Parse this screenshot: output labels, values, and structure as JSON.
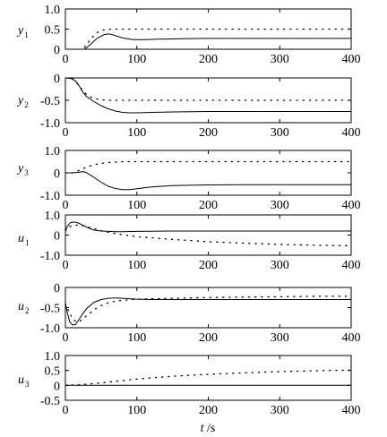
{
  "chart_data": [
    {
      "type": "line",
      "ylabel": {
        "var": "y",
        "sub": "1"
      },
      "xlim": [
        0,
        400
      ],
      "ylim": [
        0.0,
        1.0
      ],
      "xticks": [
        "0",
        "100",
        "200",
        "300",
        "400"
      ],
      "yticks": [
        "1.0",
        "0.5",
        "0"
      ],
      "series": [
        {
          "style": "solid",
          "x": [
            27,
            35,
            45,
            55,
            62,
            70,
            80,
            95,
            110,
            130,
            160,
            200,
            250,
            300,
            350,
            400
          ],
          "y": [
            0.0,
            0.12,
            0.28,
            0.37,
            0.38,
            0.34,
            0.28,
            0.24,
            0.24,
            0.25,
            0.26,
            0.27,
            0.27,
            0.27,
            0.27,
            0.27
          ]
        },
        {
          "style": "dotted",
          "x": [
            27,
            35,
            45,
            55,
            65,
            80,
            100,
            150,
            200,
            250,
            300,
            350,
            400
          ],
          "y": [
            0.05,
            0.25,
            0.42,
            0.49,
            0.5,
            0.5,
            0.5,
            0.5,
            0.5,
            0.5,
            0.5,
            0.5,
            0.5
          ]
        }
      ]
    },
    {
      "type": "line",
      "ylabel": {
        "var": "y",
        "sub": "2"
      },
      "xlim": [
        0,
        400
      ],
      "ylim": [
        -1.0,
        0.0
      ],
      "xticks": [
        "0",
        "100",
        "200",
        "300",
        "400"
      ],
      "yticks": [
        "0",
        "-0.5",
        "-1.0"
      ],
      "series": [
        {
          "style": "solid",
          "x": [
            0,
            10,
            16,
            20,
            25,
            30,
            40,
            50,
            60,
            70,
            80,
            90,
            100,
            120,
            150,
            200,
            250,
            300,
            350,
            400
          ],
          "y": [
            0.0,
            -0.02,
            -0.1,
            -0.2,
            -0.33,
            -0.42,
            -0.53,
            -0.62,
            -0.69,
            -0.74,
            -0.77,
            -0.78,
            -0.78,
            -0.77,
            -0.76,
            -0.75,
            -0.75,
            -0.75,
            -0.75,
            -0.75
          ]
        },
        {
          "style": "dotted",
          "x": [
            10,
            18,
            25,
            32,
            40,
            50,
            60,
            80,
            100,
            150,
            200,
            250,
            300,
            350,
            400
          ],
          "y": [
            -0.02,
            -0.15,
            -0.3,
            -0.4,
            -0.46,
            -0.49,
            -0.5,
            -0.5,
            -0.5,
            -0.5,
            -0.5,
            -0.5,
            -0.5,
            -0.5,
            -0.5
          ]
        }
      ]
    },
    {
      "type": "line",
      "ylabel": {
        "var": "y",
        "sub": "3"
      },
      "xlim": [
        0,
        400
      ],
      "ylim": [
        -1.0,
        1.0
      ],
      "xticks": [
        "0",
        "100",
        "200",
        "300",
        "400"
      ],
      "yticks": [
        "1.0",
        "0",
        "-1.0"
      ],
      "series": [
        {
          "style": "solid",
          "x": [
            0,
            10,
            20,
            25,
            30,
            40,
            50,
            60,
            70,
            80,
            90,
            100,
            120,
            150,
            200,
            250,
            300,
            350,
            400
          ],
          "y": [
            0.0,
            0.0,
            0.03,
            0.06,
            0.0,
            -0.2,
            -0.42,
            -0.6,
            -0.7,
            -0.75,
            -0.75,
            -0.71,
            -0.63,
            -0.57,
            -0.54,
            -0.53,
            -0.53,
            -0.53,
            -0.53
          ]
        },
        {
          "style": "dotted",
          "x": [
            0,
            10,
            20,
            30,
            40,
            50,
            60,
            80,
            100,
            150,
            200,
            250,
            300,
            350,
            400
          ],
          "y": [
            0.0,
            0.0,
            0.12,
            0.26,
            0.36,
            0.42,
            0.46,
            0.5,
            0.5,
            0.5,
            0.5,
            0.5,
            0.5,
            0.5,
            0.5
          ]
        }
      ]
    },
    {
      "type": "line",
      "ylabel": {
        "var": "u",
        "sub": "1"
      },
      "xlim": [
        0,
        400
      ],
      "ylim": [
        -1.0,
        1.0
      ],
      "xticks": [
        "0",
        "100",
        "200",
        "300",
        "400"
      ],
      "yticks": [
        "1.0",
        "0",
        "-1.0"
      ],
      "series": [
        {
          "style": "solid",
          "x": [
            0,
            3,
            7,
            12,
            18,
            25,
            32,
            40,
            50,
            60,
            70,
            80,
            100,
            150,
            200,
            250,
            300,
            350,
            400
          ],
          "y": [
            0.2,
            0.45,
            0.62,
            0.65,
            0.6,
            0.48,
            0.35,
            0.25,
            0.2,
            0.18,
            0.17,
            0.17,
            0.18,
            0.2,
            0.2,
            0.2,
            0.2,
            0.2,
            0.2
          ]
        },
        {
          "style": "dotted",
          "x": [
            0,
            5,
            10,
            20,
            30,
            40,
            50,
            60,
            80,
            100,
            150,
            200,
            250,
            300,
            350,
            400
          ],
          "y": [
            0.2,
            0.4,
            0.48,
            0.5,
            0.42,
            0.32,
            0.22,
            0.14,
            0.02,
            -0.08,
            -0.22,
            -0.33,
            -0.4,
            -0.46,
            -0.5,
            -0.53
          ]
        }
      ]
    },
    {
      "type": "line",
      "ylabel": {
        "var": "u",
        "sub": "2"
      },
      "xlim": [
        0,
        400
      ],
      "ylim": [
        -1.0,
        0.0
      ],
      "xticks": [
        "0",
        "100",
        "200",
        "300",
        "400"
      ],
      "yticks": [
        "0",
        "-0.5",
        "-1.0"
      ],
      "series": [
        {
          "style": "solid",
          "x": [
            0,
            3,
            6,
            10,
            14,
            18,
            24,
            30,
            40,
            50,
            60,
            70,
            80,
            90,
            100,
            120,
            150,
            200,
            250,
            300,
            350,
            400
          ],
          "y": [
            -0.4,
            -0.65,
            -0.85,
            -0.93,
            -0.92,
            -0.82,
            -0.66,
            -0.52,
            -0.37,
            -0.3,
            -0.27,
            -0.26,
            -0.27,
            -0.28,
            -0.29,
            -0.3,
            -0.3,
            -0.3,
            -0.3,
            -0.3,
            -0.3,
            -0.3
          ]
        },
        {
          "style": "dotted",
          "x": [
            0,
            5,
            10,
            15,
            20,
            30,
            40,
            50,
            60,
            70,
            80,
            100,
            150,
            200,
            250,
            300,
            350,
            400
          ],
          "y": [
            -0.4,
            -0.6,
            -0.78,
            -0.85,
            -0.84,
            -0.7,
            -0.55,
            -0.45,
            -0.38,
            -0.34,
            -0.32,
            -0.29,
            -0.27,
            -0.25,
            -0.24,
            -0.23,
            -0.22,
            -0.22
          ]
        }
      ]
    },
    {
      "type": "line",
      "ylabel": {
        "var": "u",
        "sub": "3"
      },
      "xlim": [
        0,
        400
      ],
      "ylim": [
        -0.5,
        1.0
      ],
      "xticks": [
        "0",
        "100",
        "200",
        "300",
        "400"
      ],
      "yticks": [
        "1.0",
        "0.5",
        "0",
        "-0.5"
      ],
      "series": [
        {
          "style": "solid",
          "x": [
            0,
            400
          ],
          "y": [
            0.0,
            0.0
          ]
        },
        {
          "style": "dotted",
          "x": [
            0,
            20,
            40,
            60,
            80,
            100,
            130,
            160,
            200,
            250,
            300,
            350,
            400
          ],
          "y": [
            0.0,
            0.02,
            0.06,
            0.11,
            0.16,
            0.21,
            0.27,
            0.32,
            0.37,
            0.42,
            0.46,
            0.49,
            0.51
          ]
        }
      ]
    }
  ],
  "xlabel": {
    "var": "t",
    "unit": " /s"
  }
}
